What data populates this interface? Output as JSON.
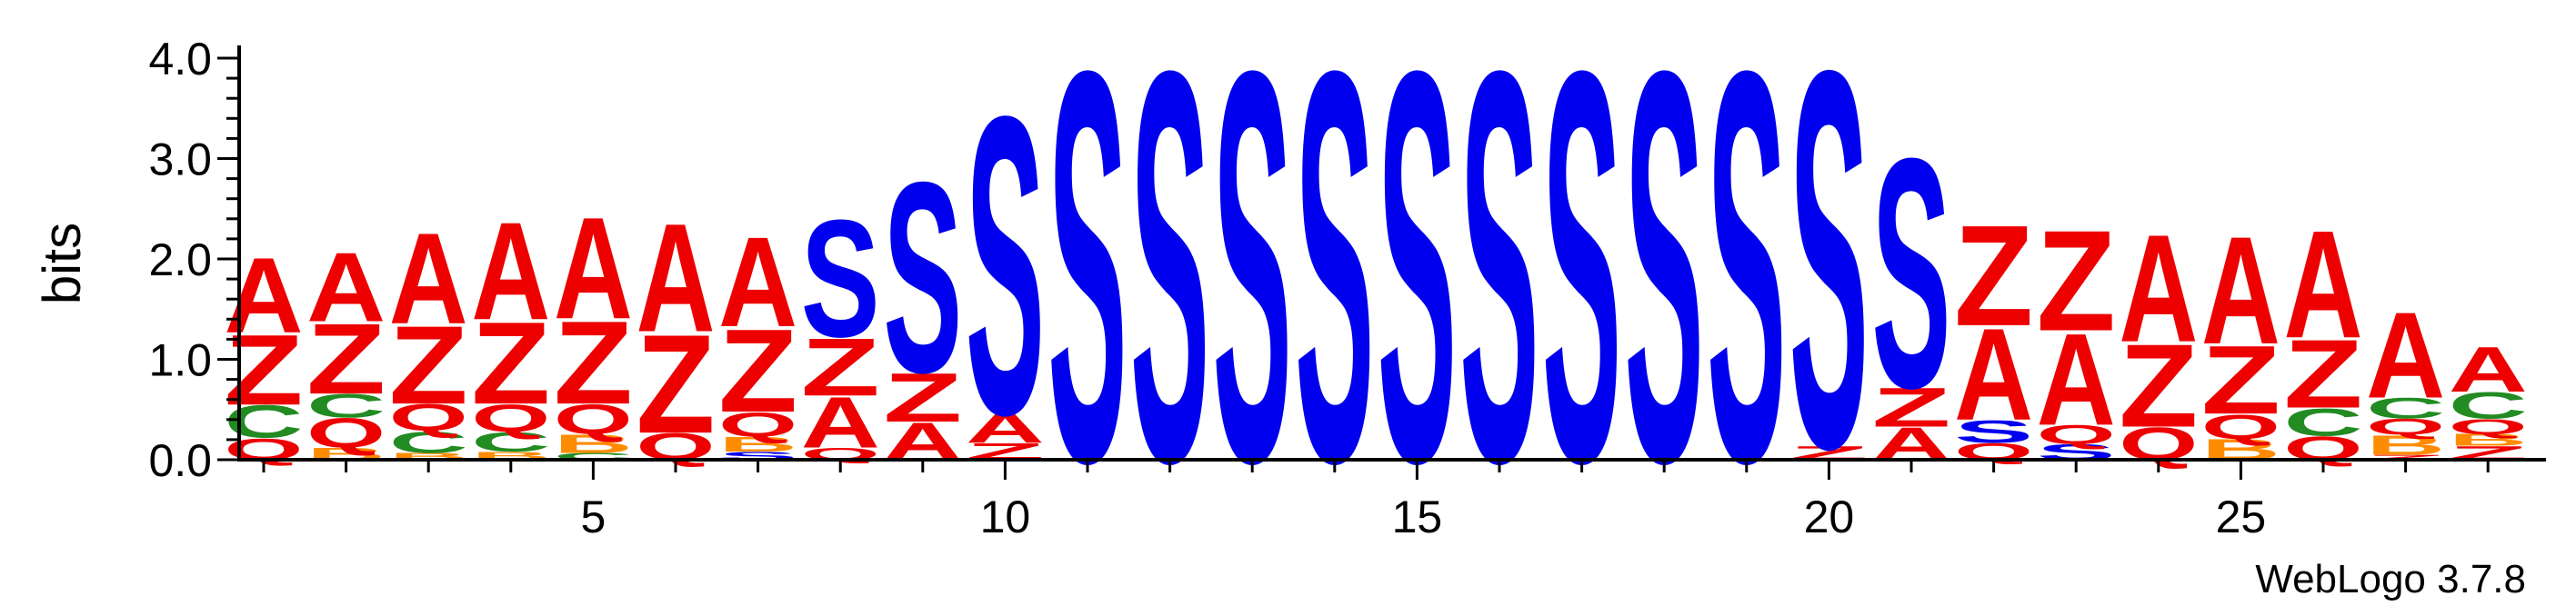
{
  "chart_data": {
    "type": "sequence-logo",
    "ylabel": "bits",
    "ylim": [
      0,
      4.0
    ],
    "y_ticks": [
      "0.0",
      "1.0",
      "2.0",
      "3.0",
      "4.0"
    ],
    "y_tick_values": [
      0,
      1,
      2,
      3,
      4
    ],
    "x_ticks": [
      "5",
      "10",
      "15",
      "20",
      "25"
    ],
    "x_tick_values": [
      5,
      10,
      15,
      20,
      25
    ],
    "footer": "WebLogo 3.7.8",
    "colors": {
      "S": "#0000ee",
      "A": "#ee0000",
      "Z": "#ee0000",
      "Q": "#ee0000",
      "C": "#228b22",
      "B": "#ff8c00"
    },
    "positions": [
      {
        "pos": 1,
        "letters": [
          {
            "l": "Q",
            "h": 0.22
          },
          {
            "l": "C",
            "h": 0.33
          },
          {
            "l": "Z",
            "h": 0.72
          },
          {
            "l": "A",
            "h": 0.77
          }
        ]
      },
      {
        "pos": 2,
        "letters": [
          {
            "l": "B",
            "h": 0.12
          },
          {
            "l": "Q",
            "h": 0.3
          },
          {
            "l": "C",
            "h": 0.24
          },
          {
            "l": "Z",
            "h": 0.72
          },
          {
            "l": "A",
            "h": 0.71
          }
        ]
      },
      {
        "pos": 3,
        "letters": [
          {
            "l": "B",
            "h": 0.07
          },
          {
            "l": "C",
            "h": 0.22
          },
          {
            "l": "Q",
            "h": 0.27
          },
          {
            "l": "Z",
            "h": 0.8
          },
          {
            "l": "A",
            "h": 0.93
          }
        ]
      },
      {
        "pos": 4,
        "letters": [
          {
            "l": "B",
            "h": 0.08
          },
          {
            "l": "C",
            "h": 0.2
          },
          {
            "l": "Q",
            "h": 0.28
          },
          {
            "l": "Z",
            "h": 0.84
          },
          {
            "l": "A",
            "h": 1.0
          }
        ]
      },
      {
        "pos": 5,
        "letters": [
          {
            "l": "C",
            "h": 0.07
          },
          {
            "l": "B",
            "h": 0.19
          },
          {
            "l": "Q",
            "h": 0.3
          },
          {
            "l": "Z",
            "h": 0.85
          },
          {
            "l": "A",
            "h": 1.04
          }
        ]
      },
      {
        "pos": 6,
        "letters": [
          {
            "l": "Q",
            "h": 0.27
          },
          {
            "l": "Z",
            "h": 1.01
          },
          {
            "l": "A",
            "h": 1.11
          }
        ]
      },
      {
        "pos": 7,
        "letters": [
          {
            "l": "S",
            "h": 0.08
          },
          {
            "l": "B",
            "h": 0.15
          },
          {
            "l": "Q",
            "h": 0.25
          },
          {
            "l": "Z",
            "h": 0.85
          },
          {
            "l": "A",
            "h": 0.92
          }
        ]
      },
      {
        "pos": 8,
        "letters": [
          {
            "l": "Q",
            "h": 0.12
          },
          {
            "l": "A",
            "h": 0.52
          },
          {
            "l": "Z",
            "h": 0.59
          },
          {
            "l": "S",
            "h": 1.2
          }
        ]
      },
      {
        "pos": 9,
        "letters": [
          {
            "l": "A",
            "h": 0.38
          },
          {
            "l": "Z",
            "h": 0.5
          },
          {
            "l": "S",
            "h": 1.95
          }
        ]
      },
      {
        "pos": 10,
        "letters": [
          {
            "l": "Z",
            "h": 0.17
          },
          {
            "l": "A",
            "h": 0.3
          },
          {
            "l": "S",
            "h": 3.05
          }
        ]
      },
      {
        "pos": 11,
        "letters": [
          {
            "l": "S",
            "h": 4.0
          }
        ]
      },
      {
        "pos": 12,
        "letters": [
          {
            "l": "S",
            "h": 4.0
          }
        ]
      },
      {
        "pos": 13,
        "letters": [
          {
            "l": "S",
            "h": 4.0
          }
        ]
      },
      {
        "pos": 14,
        "letters": [
          {
            "l": "S",
            "h": 4.0
          }
        ]
      },
      {
        "pos": 15,
        "letters": [
          {
            "l": "S",
            "h": 4.0
          }
        ]
      },
      {
        "pos": 16,
        "letters": [
          {
            "l": "S",
            "h": 4.0
          }
        ]
      },
      {
        "pos": 17,
        "letters": [
          {
            "l": "S",
            "h": 4.0
          }
        ]
      },
      {
        "pos": 18,
        "letters": [
          {
            "l": "S",
            "h": 4.0
          }
        ]
      },
      {
        "pos": 19,
        "letters": [
          {
            "l": "S",
            "h": 4.0
          }
        ]
      },
      {
        "pos": 20,
        "letters": [
          {
            "l": "Z",
            "h": 0.14
          },
          {
            "l": "S",
            "h": 3.86
          }
        ]
      },
      {
        "pos": 21,
        "letters": [
          {
            "l": "A",
            "h": 0.33
          },
          {
            "l": "Z",
            "h": 0.4
          },
          {
            "l": "S",
            "h": 2.35
          }
        ]
      },
      {
        "pos": 22,
        "letters": [
          {
            "l": "Q",
            "h": 0.17
          },
          {
            "l": "S",
            "h": 0.23
          },
          {
            "l": "A",
            "h": 0.94
          },
          {
            "l": "Z",
            "h": 1.03
          }
        ]
      },
      {
        "pos": 23,
        "letters": [
          {
            "l": "S",
            "h": 0.16
          },
          {
            "l": "Q",
            "h": 0.19
          },
          {
            "l": "A",
            "h": 0.94
          },
          {
            "l": "Z",
            "h": 1.03
          }
        ]
      },
      {
        "pos": 24,
        "letters": [
          {
            "l": "Q",
            "h": 0.33
          },
          {
            "l": "Z",
            "h": 0.85
          },
          {
            "l": "A",
            "h": 1.1
          }
        ]
      },
      {
        "pos": 25,
        "letters": [
          {
            "l": "B",
            "h": 0.21
          },
          {
            "l": "Q",
            "h": 0.25
          },
          {
            "l": "Z",
            "h": 0.7
          },
          {
            "l": "A",
            "h": 1.1
          }
        ]
      },
      {
        "pos": 26,
        "letters": [
          {
            "l": "Q",
            "h": 0.24
          },
          {
            "l": "C",
            "h": 0.28
          },
          {
            "l": "Z",
            "h": 0.7
          },
          {
            "l": "A",
            "h": 1.1
          }
        ]
      },
      {
        "pos": 27,
        "letters": [
          {
            "l": "Z",
            "h": 0.05
          },
          {
            "l": "B",
            "h": 0.2
          },
          {
            "l": "Q",
            "h": 0.16
          },
          {
            "l": "C",
            "h": 0.21
          },
          {
            "l": "A",
            "h": 0.88
          }
        ]
      },
      {
        "pos": 28,
        "letters": [
          {
            "l": "Z",
            "h": 0.14
          },
          {
            "l": "B",
            "h": 0.12
          },
          {
            "l": "Q",
            "h": 0.15
          },
          {
            "l": "C",
            "h": 0.27
          },
          {
            "l": "A",
            "h": 0.46
          }
        ]
      }
    ]
  }
}
